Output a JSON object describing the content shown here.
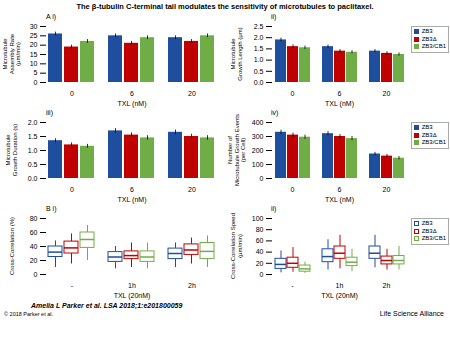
{
  "title": "The β-tubulin C-terminal tail modulates the sensitivity of microtubules to paclitaxel.",
  "annotations": [
    "Amelia L Parker et al. LSA 2018;1:e201800059",
    "© 2018 Parker et al.",
    "Life Science Alliance"
  ],
  "chart_data": [
    {
      "type": "bar",
      "title": "A i)",
      "xlabel": "TXL (nM)",
      "ylabel": "Microtubule\nAssembly Rate\n(μm/min)",
      "categories": [
        "0",
        "6",
        "20"
      ],
      "series": [
        {
          "name": "ZB3",
          "color": "#1f4e9e",
          "values": [
            26,
            25,
            24
          ],
          "errors": [
            1.0,
            1.0,
            1.0
          ]
        },
        {
          "name": "ZB3Δ",
          "color": "#c00000",
          "values": [
            19,
            21,
            22
          ],
          "errors": [
            1.0,
            1.0,
            1.0
          ]
        },
        {
          "name": "ZB3/CB1",
          "color": "#70ad47",
          "values": [
            22,
            24,
            25
          ],
          "errors": [
            1.0,
            1.0,
            1.0
          ]
        }
      ],
      "ylim": [
        0,
        30
      ],
      "yticks": [
        0,
        5,
        10,
        15,
        20,
        25,
        30
      ]
    },
    {
      "type": "bar",
      "title": "ii)",
      "xlabel": "TXL (nM)",
      "ylabel": "Microtubule\nGrowth Length (μm)",
      "categories": [
        "0",
        "6",
        "20"
      ],
      "series": [
        {
          "name": "ZB3",
          "color": "#1f4e9e",
          "values": [
            1.9,
            1.6,
            1.4
          ],
          "errors": [
            0.08,
            0.07,
            0.07
          ]
        },
        {
          "name": "ZB3Δ",
          "color": "#c00000",
          "values": [
            1.6,
            1.4,
            1.3
          ],
          "errors": [
            0.08,
            0.07,
            0.07
          ]
        },
        {
          "name": "ZB3/CB1",
          "color": "#70ad47",
          "values": [
            1.55,
            1.35,
            1.25
          ],
          "errors": [
            0.08,
            0.07,
            0.07
          ]
        }
      ],
      "ylim": [
        0,
        2.5
      ],
      "yticks": [
        {
          "value": 0,
          "label": "0.0"
        },
        0.5,
        {
          "value": 1,
          "label": "1.0"
        },
        1.5,
        {
          "value": 2,
          "label": "2.0"
        },
        2.5
      ],
      "legend": "upper right"
    },
    {
      "type": "bar",
      "title": "iii)",
      "xlabel": "TXL (nM)",
      "ylabel": "Microtubule\nGrowth Duration (s)",
      "categories": [
        "0",
        "6",
        "20"
      ],
      "series": [
        {
          "name": "ZB3",
          "color": "#1f4e9e",
          "values": [
            1.35,
            1.7,
            1.65
          ],
          "errors": [
            0.07,
            0.08,
            0.08
          ]
        },
        {
          "name": "ZB3Δ",
          "color": "#c00000",
          "values": [
            1.2,
            1.55,
            1.5
          ],
          "errors": [
            0.07,
            0.08,
            0.08
          ]
        },
        {
          "name": "ZB3/CB1",
          "color": "#70ad47",
          "values": [
            1.15,
            1.45,
            1.45
          ],
          "errors": [
            0.07,
            0.08,
            0.08
          ]
        }
      ],
      "ylim": [
        0,
        2.0
      ],
      "yticks": [
        {
          "value": 0,
          "label": "0.0"
        },
        0.5,
        {
          "value": 1,
          "label": "1.0"
        },
        1.5,
        {
          "value": 2,
          "label": "2.0"
        }
      ]
    },
    {
      "type": "bar",
      "title": "iv)",
      "xlabel": "TXL (nM)",
      "ylabel": "Number of\nMicrotubule Growth Events\n(per Cell)",
      "categories": [
        "0",
        "6",
        "20"
      ],
      "series": [
        {
          "name": "ZB3",
          "color": "#1f4e9e",
          "values": [
            330,
            320,
            175
          ],
          "errors": [
            15,
            15,
            12
          ]
        },
        {
          "name": "ZB3Δ",
          "color": "#c00000",
          "values": [
            310,
            300,
            160
          ],
          "errors": [
            15,
            15,
            12
          ]
        },
        {
          "name": "ZB3/CB1",
          "color": "#70ad47",
          "values": [
            295,
            285,
            145
          ],
          "errors": [
            15,
            15,
            12
          ]
        }
      ],
      "ylim": [
        0,
        400
      ],
      "yticks": [
        0,
        100,
        200,
        300,
        400
      ],
      "legend": "upper right"
    },
    {
      "type": "box",
      "title": "B i)",
      "xlabel": "TXL (20nM)",
      "ylabel": "Cross-Correlation (%)",
      "categories": [
        "-",
        "1h",
        "2h"
      ],
      "series": [
        {
          "name": "ZB3",
          "color": "#1f4e9e",
          "boxes": [
            {
              "q1": 25,
              "median": 32,
              "q3": 40,
              "whislo": 10,
              "whishi": 48
            },
            {
              "q1": 18,
              "median": 25,
              "q3": 32,
              "whislo": 8,
              "whishi": 40
            },
            {
              "q1": 22,
              "median": 30,
              "q3": 37,
              "whislo": 10,
              "whishi": 45
            }
          ]
        },
        {
          "name": "ZB3Δ",
          "color": "#c00000",
          "boxes": [
            {
              "q1": 30,
              "median": 38,
              "q3": 47,
              "whislo": 15,
              "whishi": 58
            },
            {
              "q1": 22,
              "median": 27,
              "q3": 33,
              "whislo": 10,
              "whishi": 45
            },
            {
              "q1": 28,
              "median": 35,
              "q3": 43,
              "whislo": 15,
              "whishi": 52
            }
          ]
        },
        {
          "name": "ZB3/CB1",
          "color": "#70ad47",
          "boxes": [
            {
              "q1": 38,
              "median": 50,
              "q3": 60,
              "whislo": 20,
              "whishi": 70
            },
            {
              "q1": 18,
              "median": 25,
              "q3": 33,
              "whislo": 8,
              "whishi": 45
            },
            {
              "q1": 22,
              "median": 33,
              "q3": 45,
              "whislo": 10,
              "whishi": 55
            }
          ]
        }
      ],
      "ylim": [
        0,
        80
      ],
      "yticks": [
        0,
        20,
        40,
        60,
        80
      ]
    },
    {
      "type": "box",
      "title": "ii)",
      "xlabel": "TXL (20nM)",
      "ylabel": "Cross-Correlation Speed\n(μm/min)",
      "categories": [
        "-",
        "1h",
        "2h"
      ],
      "series": [
        {
          "name": "ZB3",
          "color": "#1f4e9e",
          "boxes": [
            {
              "q1": 10,
              "median": 18,
              "q3": 28,
              "whislo": 3,
              "whishi": 42
            },
            {
              "q1": 22,
              "median": 32,
              "q3": 45,
              "whislo": 8,
              "whishi": 62
            },
            {
              "q1": 28,
              "median": 38,
              "q3": 50,
              "whislo": 12,
              "whishi": 70
            }
          ]
        },
        {
          "name": "ZB3Δ",
          "color": "#c00000",
          "boxes": [
            {
              "q1": 12,
              "median": 20,
              "q3": 30,
              "whislo": 4,
              "whishi": 48
            },
            {
              "q1": 28,
              "median": 38,
              "q3": 50,
              "whislo": 10,
              "whishi": 70
            },
            {
              "q1": 18,
              "median": 25,
              "q3": 32,
              "whislo": 8,
              "whishi": 45
            }
          ]
        },
        {
          "name": "ZB3/CB1",
          "color": "#70ad47",
          "boxes": [
            {
              "q1": 5,
              "median": 10,
              "q3": 16,
              "whislo": 2,
              "whishi": 22
            },
            {
              "q1": 15,
              "median": 22,
              "q3": 30,
              "whislo": 5,
              "whishi": 45
            },
            {
              "q1": 18,
              "median": 25,
              "q3": 33,
              "whislo": 8,
              "whishi": 50
            }
          ]
        }
      ],
      "ylim": [
        0,
        100
      ],
      "yticks": [
        0,
        20,
        40,
        60,
        80,
        100
      ],
      "legend": "upper right"
    }
  ]
}
